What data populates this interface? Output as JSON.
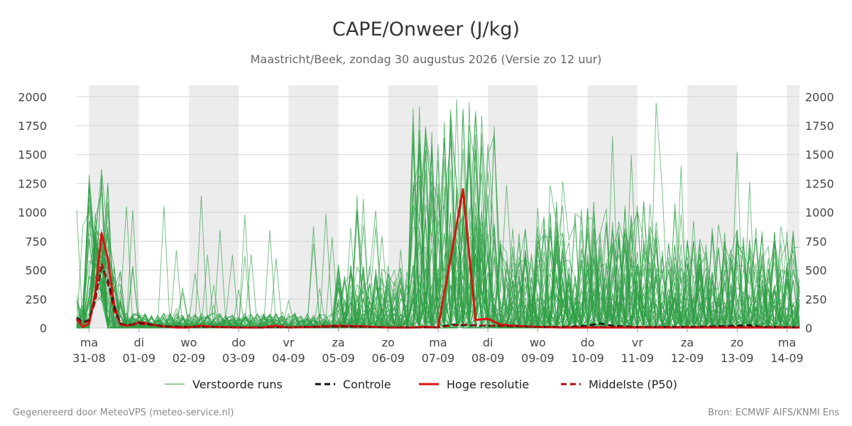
{
  "chart_data": {
    "type": "line",
    "title": "CAPE/Onweer (J/kg)",
    "subtitle": "Maastricht/Beek, zondag 30 augustus 2026 (Versie zo 12 uur)",
    "ylim": [
      0,
      2100
    ],
    "yticks": [
      0,
      250,
      500,
      750,
      1000,
      1250,
      1500,
      1750,
      2000
    ],
    "x_range_days": [
      30.75,
      45.25
    ],
    "x_ticks": [
      {
        "day": 31,
        "dow": "ma",
        "date": "31-08"
      },
      {
        "day": 32,
        "dow": "di",
        "date": "01-09"
      },
      {
        "day": 33,
        "dow": "wo",
        "date": "02-09"
      },
      {
        "day": 34,
        "dow": "do",
        "date": "03-09"
      },
      {
        "day": 35,
        "dow": "vr",
        "date": "04-09"
      },
      {
        "day": 36,
        "dow": "za",
        "date": "05-09"
      },
      {
        "day": 37,
        "dow": "zo",
        "date": "06-09"
      },
      {
        "day": 38,
        "dow": "ma",
        "date": "07-09"
      },
      {
        "day": 39,
        "dow": "di",
        "date": "08-09"
      },
      {
        "day": 40,
        "dow": "wo",
        "date": "09-09"
      },
      {
        "day": 41,
        "dow": "do",
        "date": "10-09"
      },
      {
        "day": 42,
        "dow": "vr",
        "date": "11-09"
      },
      {
        "day": 43,
        "dow": "za",
        "date": "12-09"
      },
      {
        "day": 44,
        "dow": "zo",
        "date": "13-09"
      },
      {
        "day": 45,
        "dow": "ma",
        "date": "14-09"
      }
    ],
    "shaded_days": [
      [
        31,
        32
      ],
      [
        33,
        34
      ],
      [
        35,
        36
      ],
      [
        37,
        38
      ],
      [
        39,
        40
      ],
      [
        41,
        42
      ],
      [
        43,
        44
      ],
      [
        45,
        45.25
      ]
    ],
    "grid": true,
    "legend_position": "bottom",
    "series": [
      {
        "name": "Hoge resolutie",
        "color": "#dd1111",
        "style": "solid",
        "points": [
          [
            30.75,
            75
          ],
          [
            30.875,
            10
          ],
          [
            31.0,
            40
          ],
          [
            31.125,
            300
          ],
          [
            31.25,
            820
          ],
          [
            31.375,
            600
          ],
          [
            31.5,
            200
          ],
          [
            31.625,
            30
          ],
          [
            31.75,
            20
          ],
          [
            31.875,
            30
          ],
          [
            32.0,
            50
          ],
          [
            32.125,
            45
          ],
          [
            32.25,
            30
          ],
          [
            32.5,
            15
          ],
          [
            32.75,
            5
          ],
          [
            33.0,
            5
          ],
          [
            33.25,
            20
          ],
          [
            33.5,
            10
          ],
          [
            34.0,
            5
          ],
          [
            34.5,
            5
          ],
          [
            34.75,
            20
          ],
          [
            35.0,
            5
          ],
          [
            35.5,
            10
          ],
          [
            36.0,
            20
          ],
          [
            36.5,
            15
          ],
          [
            37.0,
            5
          ],
          [
            37.5,
            5
          ],
          [
            37.75,
            10
          ],
          [
            38.0,
            5
          ],
          [
            38.25,
            600
          ],
          [
            38.5,
            1200
          ],
          [
            38.75,
            70
          ],
          [
            39.0,
            80
          ],
          [
            39.25,
            30
          ],
          [
            39.5,
            20
          ],
          [
            40.0,
            10
          ],
          [
            40.5,
            5
          ],
          [
            41.0,
            5
          ],
          [
            41.5,
            5
          ],
          [
            42.0,
            5
          ],
          [
            42.5,
            5
          ],
          [
            43.0,
            5
          ],
          [
            43.5,
            5
          ],
          [
            44.0,
            5
          ],
          [
            44.5,
            5
          ],
          [
            45.0,
            5
          ],
          [
            45.25,
            5
          ]
        ]
      },
      {
        "name": "Controle",
        "color": "#111111",
        "style": "dashed",
        "points": [
          [
            30.75,
            90
          ],
          [
            30.875,
            50
          ],
          [
            31.0,
            70
          ],
          [
            31.125,
            250
          ],
          [
            31.25,
            530
          ],
          [
            31.375,
            420
          ],
          [
            31.5,
            180
          ],
          [
            31.625,
            40
          ],
          [
            31.75,
            25
          ],
          [
            31.875,
            30
          ],
          [
            32.0,
            45
          ],
          [
            32.25,
            30
          ],
          [
            32.5,
            15
          ],
          [
            33.0,
            10
          ],
          [
            33.5,
            10
          ],
          [
            34.0,
            5
          ],
          [
            34.5,
            5
          ],
          [
            35.0,
            5
          ],
          [
            35.5,
            10
          ],
          [
            36.0,
            15
          ],
          [
            36.5,
            10
          ],
          [
            37.0,
            5
          ],
          [
            37.5,
            5
          ],
          [
            38.0,
            5
          ],
          [
            38.25,
            30
          ],
          [
            38.5,
            25
          ],
          [
            38.75,
            20
          ],
          [
            39.0,
            20
          ],
          [
            39.5,
            15
          ],
          [
            40.0,
            10
          ],
          [
            40.5,
            10
          ],
          [
            41.0,
            20
          ],
          [
            41.25,
            40
          ],
          [
            41.5,
            20
          ],
          [
            42.0,
            10
          ],
          [
            42.5,
            10
          ],
          [
            43.0,
            10
          ],
          [
            43.5,
            15
          ],
          [
            44.0,
            20
          ],
          [
            44.25,
            25
          ],
          [
            44.5,
            10
          ],
          [
            45.0,
            10
          ],
          [
            45.25,
            5
          ]
        ]
      },
      {
        "name": "Middelste (P50)",
        "color": "#aa1111",
        "style": "dashed",
        "points": [
          [
            30.75,
            80
          ],
          [
            30.875,
            40
          ],
          [
            31.0,
            60
          ],
          [
            31.125,
            230
          ],
          [
            31.25,
            560
          ],
          [
            31.375,
            380
          ],
          [
            31.5,
            150
          ],
          [
            31.625,
            35
          ],
          [
            31.75,
            20
          ],
          [
            32.0,
            35
          ],
          [
            32.25,
            25
          ],
          [
            32.5,
            10
          ],
          [
            33.0,
            10
          ],
          [
            33.5,
            10
          ],
          [
            34.0,
            5
          ],
          [
            35.0,
            5
          ],
          [
            36.0,
            10
          ],
          [
            36.5,
            10
          ],
          [
            37.0,
            5
          ],
          [
            37.5,
            5
          ],
          [
            38.0,
            5
          ],
          [
            38.25,
            20
          ],
          [
            38.5,
            30
          ],
          [
            38.75,
            25
          ],
          [
            39.0,
            20
          ],
          [
            39.5,
            15
          ],
          [
            40.0,
            10
          ],
          [
            41.0,
            10
          ],
          [
            42.0,
            10
          ],
          [
            43.0,
            10
          ],
          [
            44.0,
            10
          ],
          [
            45.0,
            8
          ],
          [
            45.25,
            5
          ]
        ]
      }
    ],
    "ensemble": {
      "name": "Verstoorde runs",
      "color": "#2e9e44",
      "members": 50
    }
  },
  "legend": [
    {
      "label": "Verstoorde runs",
      "color": "#2e9e44",
      "style": "thin"
    },
    {
      "label": "Controle",
      "color": "#111111",
      "style": "dashed"
    },
    {
      "label": "Hoge resolutie",
      "color": "#dd1111",
      "style": "solid"
    },
    {
      "label": "Middelste (P50)",
      "color": "#aa1111",
      "style": "dashed"
    }
  ],
  "footer": {
    "left": "Gegenereerd door MeteoVPS (meteo-service.nl)",
    "right": "Bron: ECMWF AIFS/KNMI Ens"
  }
}
